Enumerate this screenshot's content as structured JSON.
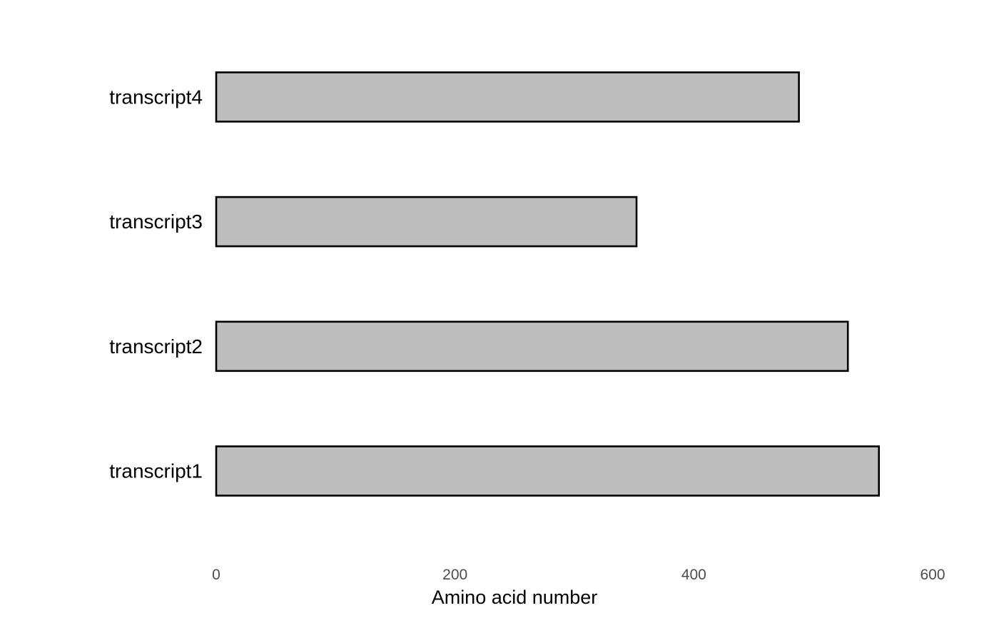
{
  "chart_data": {
    "type": "bar",
    "orientation": "horizontal",
    "categories": [
      "transcript1",
      "transcript2",
      "transcript3",
      "transcript4"
    ],
    "series": [
      {
        "values": [
          555,
          529,
          352,
          488
        ]
      }
    ],
    "title": "",
    "xlabel": "Amino acid number",
    "ylabel": "",
    "xlim": [
      0,
      600
    ],
    "x_ticks": [
      "0",
      "200",
      "400",
      "600"
    ],
    "grid": false,
    "legend": "none",
    "colors": {
      "bar_fill": "#bebebe",
      "bar_stroke": "#000000",
      "tick_text": "#4d4d4d",
      "label_text": "#000000"
    }
  }
}
